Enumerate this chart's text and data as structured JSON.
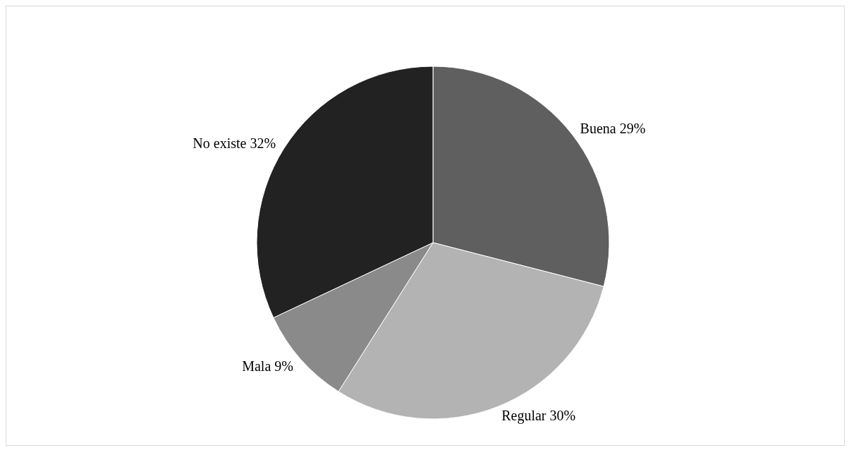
{
  "chart_data": {
    "type": "pie",
    "categories": [
      "Buena",
      "Regular",
      "Mala",
      "No existe"
    ],
    "values": [
      29,
      30,
      9,
      32
    ],
    "value_labels": [
      "29%",
      "30%",
      "9%",
      "32%"
    ],
    "colors": [
      "#5f5f5f",
      "#b3b3b3",
      "#8a8a8a",
      "#222222"
    ]
  }
}
